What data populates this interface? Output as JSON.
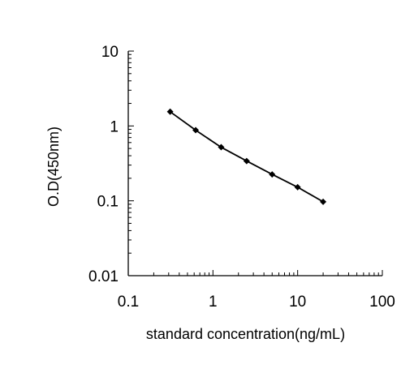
{
  "chart_data": {
    "type": "line",
    "title": "",
    "xlabel": "standard concentration(ng/mL)",
    "ylabel": "O.D(450nm)",
    "xscale": "log",
    "yscale": "log",
    "xlim": [
      0.1,
      100
    ],
    "ylim": [
      0.01,
      10
    ],
    "xticks": [
      0.1,
      1,
      10,
      100
    ],
    "xtick_labels": [
      "0.1",
      "1",
      "10",
      "100"
    ],
    "yticks": [
      0.01,
      0.1,
      1,
      10
    ],
    "ytick_labels": [
      "0.01",
      "0.1",
      "1",
      "10"
    ],
    "grid": false,
    "legend": "none",
    "marker": "diamond",
    "series": [
      {
        "x": [
          0.3125,
          0.625,
          1.25,
          2.5,
          5,
          10,
          20
        ],
        "y": [
          1.55,
          0.88,
          0.52,
          0.34,
          0.225,
          0.152,
          0.097
        ]
      }
    ],
    "colors": {
      "line": "#000000",
      "marker": "#000000"
    }
  }
}
